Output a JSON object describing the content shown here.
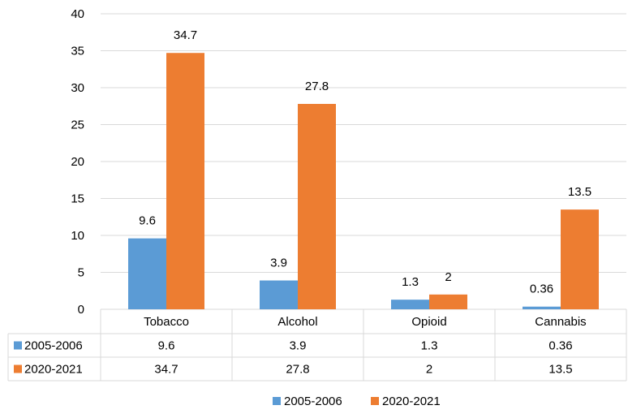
{
  "chart_data": {
    "type": "bar",
    "categories": [
      "Tobacco",
      "Alcohol",
      "Opioid",
      "Cannabis"
    ],
    "series": [
      {
        "name": "2005-2006",
        "values": [
          9.6,
          3.9,
          1.3,
          0.36
        ],
        "labels": [
          "9.6",
          "3.9",
          "1.3",
          "0.36"
        ],
        "color": "#5B9BD5"
      },
      {
        "name": "2020-2021",
        "values": [
          34.7,
          27.8,
          2,
          13.5
        ],
        "labels": [
          "34.7",
          "27.8",
          "2",
          "13.5"
        ],
        "color": "#ED7D31"
      }
    ],
    "ylim": [
      0,
      40
    ],
    "yticks": [
      "0",
      "5",
      "10",
      "15",
      "20",
      "25",
      "30",
      "35",
      "40"
    ],
    "grid": true,
    "data_table": true,
    "legend": "bottom",
    "gridColor": "#D9D9D9"
  }
}
